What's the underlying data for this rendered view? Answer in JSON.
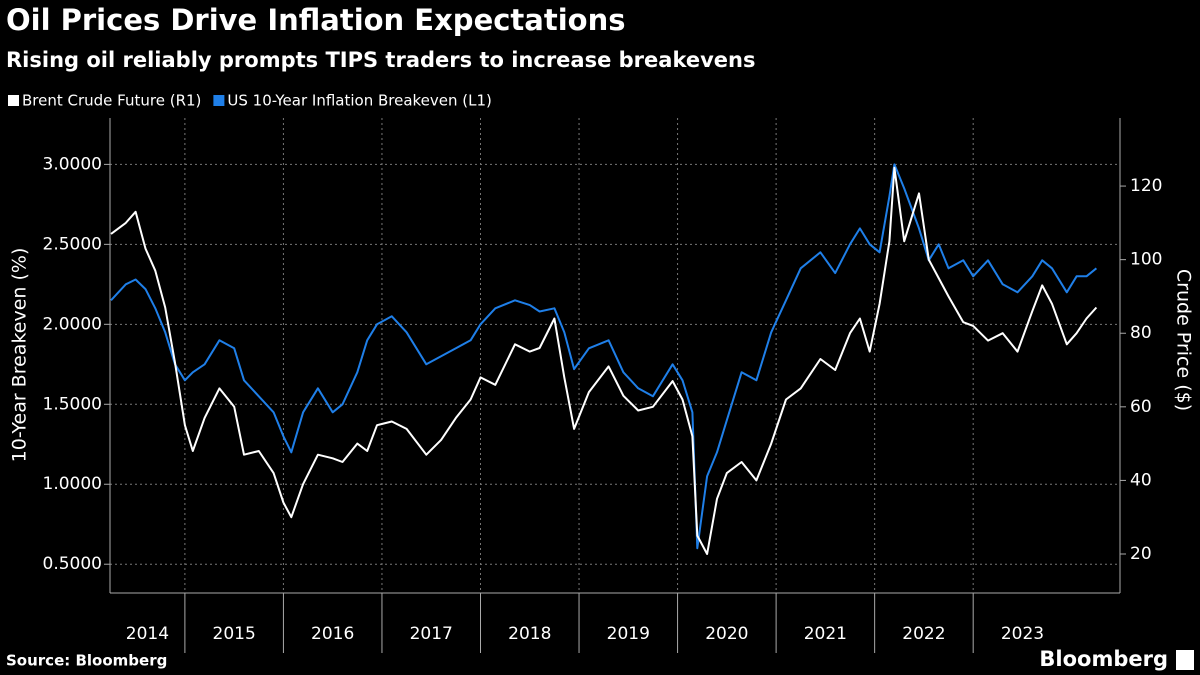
{
  "chart_data": {
    "type": "line",
    "title": "Oil Prices Drive Inflation Expectations",
    "subtitle": "Rising oil reliably prompts TIPS traders to increase breakevens",
    "source": "Source: Bloomberg",
    "brand": "Bloomberg",
    "ylabel": "10-Year Breakeven (%)",
    "y2label": "Crude Price ($)",
    "x": [
      2014.25,
      2014.4,
      2014.5,
      2014.6,
      2014.7,
      2014.8,
      2014.9,
      2015.0,
      2015.08,
      2015.2,
      2015.35,
      2015.5,
      2015.6,
      2015.75,
      2015.9,
      2016.0,
      2016.08,
      2016.2,
      2016.35,
      2016.5,
      2016.6,
      2016.75,
      2016.85,
      2016.95,
      2017.1,
      2017.25,
      2017.45,
      2017.6,
      2017.75,
      2017.9,
      2018.0,
      2018.15,
      2018.35,
      2018.5,
      2018.6,
      2018.75,
      2018.85,
      2018.95,
      2019.1,
      2019.3,
      2019.45,
      2019.6,
      2019.75,
      2019.95,
      2020.05,
      2020.15,
      2020.2,
      2020.3,
      2020.4,
      2020.5,
      2020.65,
      2020.8,
      2020.95,
      2021.1,
      2021.25,
      2021.45,
      2021.6,
      2021.75,
      2021.85,
      2021.95,
      2022.05,
      2022.15,
      2022.2,
      2022.3,
      2022.45,
      2022.55,
      2022.65,
      2022.75,
      2022.9,
      2023.0,
      2023.15,
      2023.3,
      2023.45,
      2023.6,
      2023.7,
      2023.8,
      2023.95,
      2024.05,
      2024.15,
      2024.25
    ],
    "series": [
      {
        "name": "Brent Crude Future (R1)",
        "color": "#ffffff",
        "axis": "y2",
        "values": [
          107,
          110,
          113,
          103,
          97,
          87,
          72,
          55,
          48,
          57,
          65,
          60,
          47,
          48,
          42,
          34,
          30,
          39,
          47,
          46,
          45,
          50,
          48,
          55,
          56,
          54,
          47,
          51,
          57,
          62,
          68,
          66,
          77,
          75,
          76,
          84,
          68,
          54,
          64,
          71,
          63,
          59,
          60,
          67,
          62,
          52,
          25,
          20,
          35,
          42,
          45,
          40,
          50,
          62,
          65,
          73,
          70,
          80,
          84,
          75,
          88,
          105,
          125,
          105,
          118,
          100,
          95,
          90,
          83,
          82,
          78,
          80,
          75,
          86,
          93,
          88,
          77,
          80,
          84,
          87
        ]
      },
      {
        "name": "US 10-Year Inflation Breakeven (L1)",
        "color": "#1f7fe8",
        "values": [
          2.15,
          2.25,
          2.28,
          2.22,
          2.1,
          1.95,
          1.75,
          1.65,
          1.7,
          1.75,
          1.9,
          1.85,
          1.65,
          1.55,
          1.45,
          1.3,
          1.2,
          1.45,
          1.6,
          1.45,
          1.5,
          1.7,
          1.9,
          2.0,
          2.05,
          1.95,
          1.75,
          1.8,
          1.85,
          1.9,
          2.0,
          2.1,
          2.15,
          2.12,
          2.08,
          2.1,
          1.95,
          1.72,
          1.85,
          1.9,
          1.7,
          1.6,
          1.55,
          1.75,
          1.65,
          1.45,
          0.6,
          1.05,
          1.2,
          1.4,
          1.7,
          1.65,
          1.95,
          2.15,
          2.35,
          2.45,
          2.32,
          2.5,
          2.6,
          2.5,
          2.45,
          2.8,
          3.0,
          2.85,
          2.6,
          2.4,
          2.5,
          2.35,
          2.4,
          2.3,
          2.4,
          2.25,
          2.2,
          2.3,
          2.4,
          2.35,
          2.2,
          2.3,
          2.3,
          2.35
        ]
      }
    ],
    "xlim": [
      2014.24,
      2024.49
    ],
    "xticks": [
      {
        "value": 2014,
        "label": "2014"
      },
      {
        "value": 2015,
        "label": "2015"
      },
      {
        "value": 2016,
        "label": "2016"
      },
      {
        "value": 2017,
        "label": "2017"
      },
      {
        "value": 2018,
        "label": "2018"
      },
      {
        "value": 2019,
        "label": "2019"
      },
      {
        "value": 2020,
        "label": "2020"
      },
      {
        "value": 2021,
        "label": "2021"
      },
      {
        "value": 2022,
        "label": "2022"
      },
      {
        "value": 2023,
        "label": "2023"
      }
    ],
    "ylim": [
      0.32,
      3.29
    ],
    "yticks": [
      {
        "value": 0.5,
        "label": "0.5000"
      },
      {
        "value": 1,
        "label": "1.0000"
      },
      {
        "value": 1.5,
        "label": "1.5000"
      },
      {
        "value": 2,
        "label": "2.0000"
      },
      {
        "value": 2.5,
        "label": "2.5000"
      },
      {
        "value": 3,
        "label": "3.0000"
      }
    ],
    "y2lim": [
      9.4,
      138.5
    ],
    "y2ticks": [
      20,
      40,
      60,
      80,
      100,
      120
    ],
    "grid": true
  }
}
